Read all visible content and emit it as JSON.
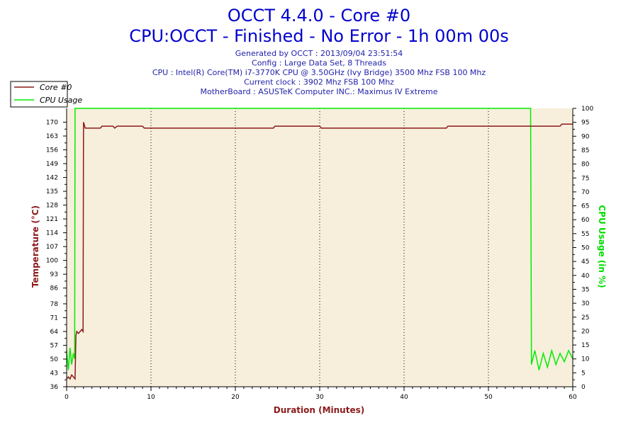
{
  "chart_data": {
    "type": "line",
    "title": "OCCT 4.4.0 - Core #0",
    "subtitle": "CPU:OCCT - Finished - No Error - 1h 00m 00s",
    "info_lines": [
      "Generated by OCCT : 2013/09/04 23:51:54",
      "Config : Large Data Set, 8 Threads",
      "CPU : Intel(R) Core(TM) i7-3770K CPU @ 3.50GHz (Ivy Bridge) 3500 Mhz FSB 100 Mhz",
      "Current clock : 3902 Mhz FSB 100 Mhz",
      "MotherBoard : ASUSTeK Computer INC.: Maximus IV Extreme"
    ],
    "xlabel": "Duration (Minutes)",
    "ylabel_left": "Temperature (°C)",
    "ylabel_right": "CPU Usage (in %)",
    "xlim": [
      0,
      60
    ],
    "ylim_left": [
      36,
      177
    ],
    "ylim_right": [
      0,
      100
    ],
    "x_ticks": [
      "0",
      "10",
      "20",
      "30",
      "40",
      "50",
      "60"
    ],
    "y_left_ticks": [
      "36",
      "43",
      "50",
      "57",
      "64",
      "71",
      "78",
      "86",
      "93",
      "100",
      "107",
      "114",
      "121",
      "128",
      "135",
      "142",
      "149",
      "156",
      "163",
      "170"
    ],
    "y_right_ticks": [
      "0",
      "5",
      "10",
      "15",
      "20",
      "25",
      "30",
      "35",
      "40",
      "45",
      "50",
      "55",
      "60",
      "65",
      "70",
      "75",
      "80",
      "85",
      "90",
      "95",
      "100"
    ],
    "grid": true,
    "legend_position": "top-left",
    "colors": {
      "temperature": "#8b1a1a",
      "cpu_usage": "#00ee00",
      "plot_bg": "#f7efdc",
      "title": "#0000cc",
      "grid": "#000000"
    },
    "series": [
      {
        "name": "Core #0",
        "axis": "left",
        "x": [
          0,
          0.2,
          0.4,
          0.6,
          0.8,
          1.0,
          1.1,
          1.2,
          1.4,
          1.6,
          1.8,
          1.95,
          2.0,
          2.2,
          4.0,
          4.2,
          5.5,
          5.7,
          6.0,
          6.2,
          9.0,
          9.2,
          24.5,
          24.7,
          30.0,
          30.2,
          45.0,
          45.2,
          58.5,
          58.7,
          60.0
        ],
        "values": [
          40,
          41,
          40,
          42,
          41,
          40,
          62,
          64,
          63,
          64,
          65,
          64,
          170,
          167,
          167,
          168,
          168,
          167,
          168,
          168,
          168,
          167,
          167,
          168,
          168,
          167,
          167,
          168,
          168,
          169,
          169
        ]
      },
      {
        "name": "CPU Usage",
        "axis": "right",
        "x": [
          0,
          0.2,
          0.4,
          0.6,
          0.8,
          0.95,
          1.0,
          55.0,
          55.1,
          55.5,
          56,
          56.5,
          57,
          57.5,
          58,
          58.5,
          59,
          59.5,
          60
        ],
        "values": [
          13,
          6,
          14,
          8,
          12,
          10,
          100,
          100,
          8,
          13,
          6,
          12,
          7,
          13,
          8,
          12,
          9,
          13,
          10
        ]
      }
    ]
  }
}
